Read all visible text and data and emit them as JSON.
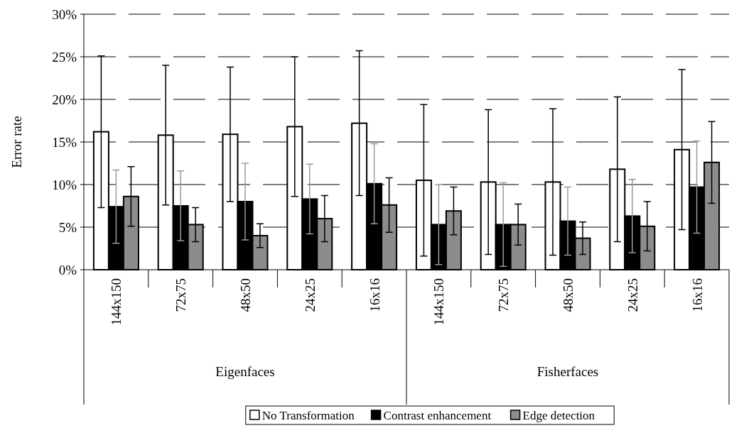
{
  "chart_data": {
    "type": "bar",
    "ylabel": "Error rate",
    "categories": [
      "144x150",
      "72x75",
      "48x50",
      "24x25",
      "16x16",
      "144x150",
      "72x75",
      "48x50",
      "24x25",
      "16x16"
    ],
    "annotations": [
      "Eigenfaces",
      "Fisherfaces"
    ],
    "series": [
      {
        "name": "No Transformation",
        "color": "#ffffff",
        "values": [
          16.2,
          15.8,
          15.9,
          16.8,
          17.2,
          10.5,
          10.3,
          10.3,
          11.8,
          14.1
        ],
        "errors": [
          8.9,
          8.2,
          7.9,
          8.2,
          8.5,
          8.9,
          8.5,
          8.6,
          8.5,
          9.4
        ]
      },
      {
        "name": "Contrast enhancement",
        "color": "#000000",
        "values": [
          7.4,
          7.5,
          8.0,
          8.3,
          10.1,
          5.3,
          5.3,
          5.7,
          6.3,
          9.7
        ],
        "errors": [
          4.3,
          4.1,
          4.5,
          4.1,
          4.7,
          4.7,
          4.9,
          4.0,
          4.3,
          5.4
        ]
      },
      {
        "name": "Edge detection",
        "color": "#8c8c8c",
        "values": [
          8.6,
          5.3,
          4.0,
          6.0,
          7.6,
          6.9,
          5.3,
          3.7,
          5.1,
          12.6
        ],
        "errors": [
          3.5,
          2.0,
          1.4,
          2.7,
          3.2,
          2.8,
          2.4,
          1.9,
          2.9,
          4.8
        ]
      }
    ],
    "ylim": [
      0,
      30
    ],
    "yticks": [
      {
        "value": 0,
        "label": "0%"
      },
      {
        "value": 5,
        "label": "5%"
      },
      {
        "value": 10,
        "label": "10%"
      },
      {
        "value": 15,
        "label": "15%"
      },
      {
        "value": 20,
        "label": "20%"
      },
      {
        "value": 25,
        "label": "25%"
      },
      {
        "value": 30,
        "label": "30%"
      }
    ],
    "grid": "y",
    "legend": "bottom"
  }
}
